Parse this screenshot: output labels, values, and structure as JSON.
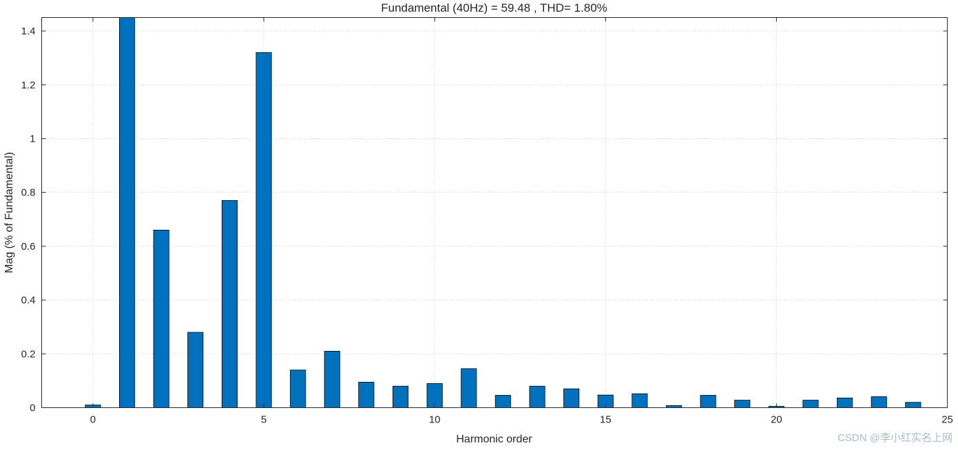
{
  "chart_data": {
    "type": "bar",
    "title": "Fundamental (40Hz) = 59.48 , THD= 1.80%",
    "xlabel": "Harmonic order",
    "ylabel": "Mag (% of Fundamental)",
    "x": [
      0,
      1,
      2,
      3,
      4,
      5,
      6,
      7,
      8,
      9,
      10,
      11,
      12,
      13,
      14,
      15,
      16,
      17,
      18,
      19,
      20,
      21,
      22,
      23,
      24
    ],
    "values": [
      0.01,
      1.48,
      0.66,
      0.28,
      0.77,
      1.32,
      0.14,
      0.21,
      0.095,
      0.08,
      0.09,
      0.145,
      0.046,
      0.08,
      0.07,
      0.047,
      0.052,
      0.008,
      0.046,
      0.028,
      0.005,
      0.028,
      0.036,
      0.041,
      0.02
    ],
    "xlim": [
      -1.5,
      25
    ],
    "ylim": [
      0,
      1.45
    ],
    "xticks": [
      0,
      5,
      10,
      15,
      20,
      25
    ],
    "yticks": [
      0,
      0.2,
      0.4,
      0.6,
      0.8,
      1,
      1.2,
      1.4
    ],
    "bar_width": 0.45,
    "bar_color": "#0072BD",
    "bar_edge_color": "#000000",
    "grid": "on",
    "legend_position": "none"
  },
  "watermark": {
    "text": "CSDN @李小红实名上网"
  }
}
